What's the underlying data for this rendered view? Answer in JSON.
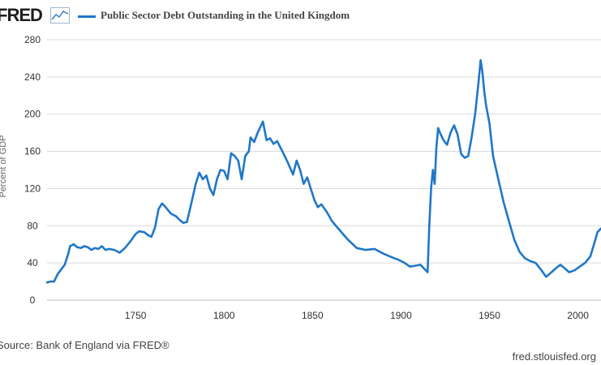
{
  "header": {
    "logo_text": "FRED",
    "logo_graph_icon": "line-graph-icon",
    "series_label": "Public Sector Debt Outstanding in the United Kingdom"
  },
  "colors": {
    "series": "#1f77c9",
    "grid": "#d9d9d9",
    "text": "#333333"
  },
  "footer": {
    "source": "Source: Bank of England via FRED®",
    "credit": "fred.stlouisfed.org"
  },
  "chart_data": {
    "type": "line",
    "title": "Public Sector Debt Outstanding in the United Kingdom",
    "xlabel": "",
    "ylabel": "Percent of GDP",
    "xlim": [
      1700,
      2013
    ],
    "ylim": [
      0,
      280
    ],
    "yticks": [
      0,
      40,
      80,
      120,
      160,
      200,
      240,
      280
    ],
    "xticks": [
      1750,
      1800,
      1850,
      1900,
      1950,
      2000
    ],
    "grid": true,
    "legend": "top-left",
    "series": [
      {
        "name": "Public Sector Debt Outstanding in the United Kingdom",
        "x": [
          1700,
          1702,
          1704,
          1706,
          1708,
          1710,
          1712,
          1713,
          1715,
          1717,
          1719,
          1721,
          1723,
          1725,
          1727,
          1729,
          1731,
          1733,
          1735,
          1738,
          1741,
          1744,
          1747,
          1750,
          1752,
          1755,
          1757,
          1759,
          1761,
          1763,
          1765,
          1767,
          1770,
          1773,
          1775,
          1777,
          1779,
          1781,
          1782,
          1784,
          1786,
          1788,
          1790,
          1792,
          1794,
          1796,
          1798,
          1800,
          1802,
          1804,
          1806,
          1808,
          1810,
          1812,
          1814,
          1815,
          1817,
          1819,
          1821,
          1822,
          1824,
          1826,
          1828,
          1830,
          1833,
          1836,
          1839,
          1841,
          1843,
          1845,
          1847,
          1849,
          1851,
          1853,
          1855,
          1858,
          1861,
          1865,
          1870,
          1875,
          1880,
          1885,
          1890,
          1895,
          1899,
          1902,
          1905,
          1908,
          1911,
          1913,
          1915,
          1916,
          1917,
          1918,
          1919,
          1920,
          1921,
          1922,
          1924,
          1926,
          1928,
          1930,
          1932,
          1934,
          1936,
          1938,
          1940,
          1942,
          1944,
          1945,
          1946,
          1947,
          1948,
          1950,
          1952,
          1955,
          1958,
          1961,
          1964,
          1967,
          1970,
          1973,
          1976,
          1979,
          1982,
          1985,
          1988,
          1990,
          1992,
          1995,
          1998,
          2001,
          2004,
          2007,
          2009,
          2011,
          2013
        ],
        "values": [
          19,
          20,
          20,
          28,
          33,
          38,
          50,
          58,
          60,
          57,
          56,
          58,
          57,
          54,
          56,
          55,
          58,
          54,
          55,
          54,
          51,
          56,
          63,
          71,
          74,
          73,
          70,
          68,
          78,
          98,
          104,
          100,
          93,
          90,
          86,
          83,
          84,
          100,
          108,
          125,
          137,
          130,
          134,
          120,
          113,
          130,
          140,
          139,
          130,
          158,
          155,
          150,
          130,
          155,
          160,
          175,
          170,
          180,
          188,
          192,
          172,
          174,
          168,
          171,
          160,
          148,
          135,
          150,
          140,
          125,
          132,
          120,
          108,
          100,
          103,
          95,
          85,
          76,
          65,
          56,
          54,
          55,
          50,
          46,
          43,
          40,
          36,
          37,
          38,
          34,
          30,
          80,
          120,
          140,
          125,
          165,
          185,
          180,
          172,
          167,
          180,
          188,
          178,
          157,
          153,
          155,
          176,
          202,
          238,
          258,
          245,
          225,
          210,
          190,
          155,
          130,
          105,
          85,
          65,
          52,
          45,
          42,
          40,
          33,
          25,
          30,
          35,
          38,
          35,
          30,
          32,
          36,
          40,
          47,
          60,
          73,
          77
        ]
      }
    ]
  }
}
